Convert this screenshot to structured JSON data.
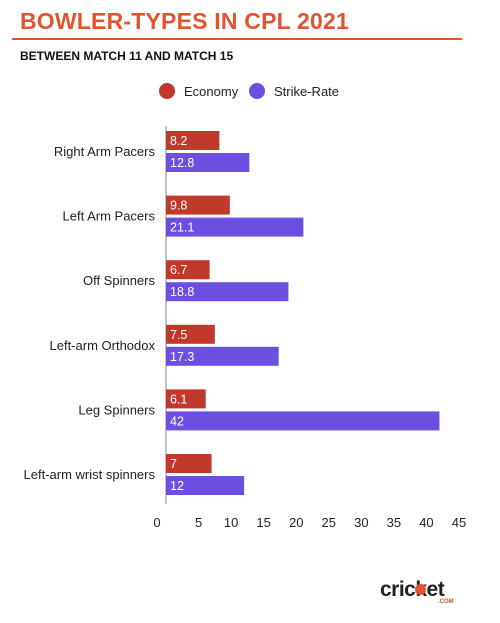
{
  "header": {
    "title": "BOWLER-TYPES IN CPL 2021",
    "subtitle": "BETWEEN MATCH 11 AND MATCH 15"
  },
  "logo": {
    "main": "cricket",
    "sub": ".COM",
    "accent_color": "#e0542f"
  },
  "chart_data": {
    "type": "bar",
    "orientation": "horizontal",
    "categories": [
      "Right Arm Pacers",
      "Left Arm Pacers",
      "Off Spinners",
      "Left-arm Orthodox",
      "Leg Spinners",
      "Left-arm wrist spinners"
    ],
    "series": [
      {
        "name": "Economy",
        "color": "#c0392b",
        "values": [
          8.2,
          9.8,
          6.7,
          7.5,
          6.1,
          7
        ],
        "labels": [
          "8.2",
          "9.8",
          "6.7",
          "7.5",
          "6.1",
          "7"
        ]
      },
      {
        "name": "Strike-Rate",
        "color": "#6c4ee0",
        "values": [
          12.8,
          21.1,
          18.8,
          17.3,
          42,
          12
        ],
        "labels": [
          "12.8",
          "21.1",
          "18.8",
          "17.3",
          "42",
          "12"
        ]
      }
    ],
    "xlim": [
      0,
      45
    ],
    "xticks": [
      "0",
      "5",
      "10",
      "15",
      "20",
      "25",
      "30",
      "35",
      "40",
      "45"
    ],
    "legend_position": "top",
    "grid": false
  }
}
